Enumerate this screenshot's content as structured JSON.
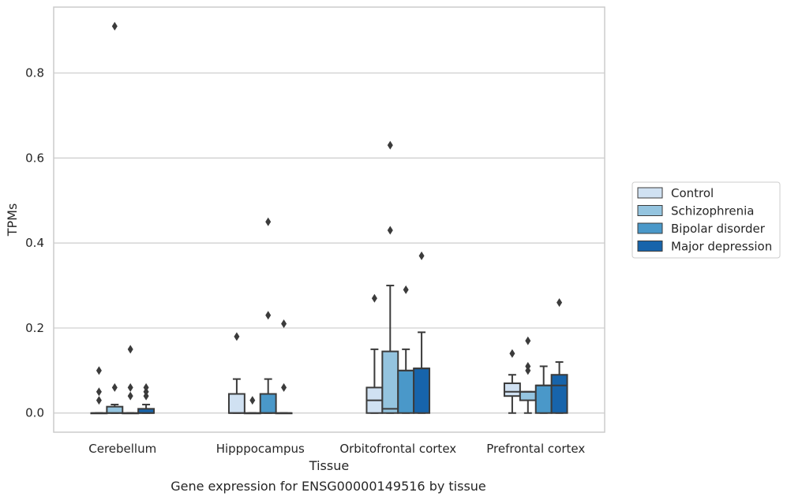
{
  "chart_data": {
    "type": "box",
    "title": "",
    "caption": "Gene expression for ENSG00000149516 by tissue",
    "xlabel": "Tissue",
    "ylabel": "TPMs",
    "ylim": [
      -0.045,
      0.955
    ],
    "yticks": [
      0.0,
      0.2,
      0.4,
      0.6,
      0.8
    ],
    "ytick_labels": [
      "0.0",
      "0.2",
      "0.4",
      "0.6",
      "0.8"
    ],
    "grid": "horizontal",
    "legend_position": "right",
    "categories": [
      "Cerebellum",
      "Hipppocampus",
      "Orbitofrontal cortex",
      "Prefrontal cortex"
    ],
    "series": [
      {
        "name": "Control",
        "color": "#d0e1f2",
        "boxes": [
          {
            "q1": 0.0,
            "median": 0.0,
            "q3": 0.0,
            "whislo": 0.0,
            "whishi": 0.0,
            "fliers": [
              0.03,
              0.05,
              0.1
            ]
          },
          {
            "q1": 0.0,
            "median": 0.0,
            "q3": 0.045,
            "whislo": 0.0,
            "whishi": 0.08,
            "fliers": [
              0.18
            ]
          },
          {
            "q1": 0.0,
            "median": 0.03,
            "q3": 0.06,
            "whislo": 0.0,
            "whishi": 0.15,
            "fliers": [
              0.27
            ]
          },
          {
            "q1": 0.04,
            "median": 0.05,
            "q3": 0.07,
            "whislo": 0.0,
            "whishi": 0.09,
            "fliers": [
              0.14
            ]
          }
        ]
      },
      {
        "name": "Schizophrenia",
        "color": "#94c4df",
        "boxes": [
          {
            "q1": 0.0,
            "median": 0.0,
            "q3": 0.015,
            "whislo": 0.0,
            "whishi": 0.02,
            "fliers": [
              0.06,
              0.91
            ]
          },
          {
            "q1": 0.0,
            "median": 0.0,
            "q3": 0.0,
            "whislo": 0.0,
            "whishi": 0.0,
            "fliers": [
              0.03
            ]
          },
          {
            "q1": 0.0,
            "median": 0.01,
            "q3": 0.145,
            "whislo": 0.0,
            "whishi": 0.3,
            "fliers": [
              0.43,
              0.63
            ]
          },
          {
            "q1": 0.03,
            "median": 0.05,
            "q3": 0.05,
            "whislo": 0.0,
            "whishi": 0.05,
            "fliers": [
              0.1,
              0.11,
              0.17
            ]
          }
        ]
      },
      {
        "name": "Bipolar disorder",
        "color": "#4a98c9",
        "boxes": [
          {
            "q1": 0.0,
            "median": 0.0,
            "q3": 0.0,
            "whislo": 0.0,
            "whishi": 0.0,
            "fliers": [
              0.04,
              0.06,
              0.15
            ]
          },
          {
            "q1": 0.0,
            "median": 0.0,
            "q3": 0.045,
            "whislo": 0.0,
            "whishi": 0.08,
            "fliers": [
              0.23,
              0.45
            ]
          },
          {
            "q1": 0.0,
            "median": 0.1,
            "q3": 0.1,
            "whislo": 0.0,
            "whishi": 0.15,
            "fliers": [
              0.29
            ]
          },
          {
            "q1": 0.0,
            "median": 0.065,
            "q3": 0.065,
            "whislo": 0.0,
            "whishi": 0.11,
            "fliers": []
          }
        ]
      },
      {
        "name": "Major depression",
        "color": "#1764ab",
        "boxes": [
          {
            "q1": 0.0,
            "median": 0.0,
            "q3": 0.01,
            "whislo": 0.0,
            "whishi": 0.02,
            "fliers": [
              0.04,
              0.05,
              0.06
            ]
          },
          {
            "q1": 0.0,
            "median": 0.0,
            "q3": 0.0,
            "whislo": 0.0,
            "whishi": 0.0,
            "fliers": [
              0.06,
              0.21
            ]
          },
          {
            "q1": 0.0,
            "median": 0.105,
            "q3": 0.105,
            "whislo": 0.0,
            "whishi": 0.19,
            "fliers": [
              0.37
            ]
          },
          {
            "q1": 0.0,
            "median": 0.065,
            "q3": 0.09,
            "whislo": 0.0,
            "whishi": 0.12,
            "fliers": [
              0.26
            ]
          }
        ]
      }
    ]
  }
}
